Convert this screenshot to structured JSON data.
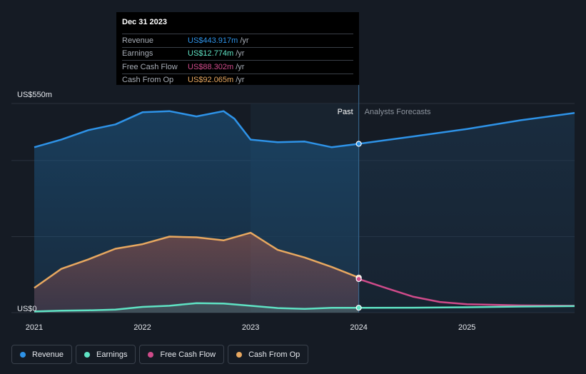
{
  "tooltip": {
    "date": "Dec 31 2023",
    "rows": [
      {
        "label": "Revenue",
        "value": "US$443.917m",
        "unit": "/yr",
        "color": "#2e93e8"
      },
      {
        "label": "Earnings",
        "value": "US$12.774m",
        "unit": "/yr",
        "color": "#5fe3c4"
      },
      {
        "label": "Free Cash Flow",
        "value": "US$88.302m",
        "unit": "/yr",
        "color": "#cf4b8a"
      },
      {
        "label": "Cash From Op",
        "value": "US$92.065m",
        "unit": "/yr",
        "color": "#e8a860"
      }
    ]
  },
  "legend": [
    {
      "label": "Revenue",
      "color": "#2e93e8"
    },
    {
      "label": "Earnings",
      "color": "#5fe3c4"
    },
    {
      "label": "Free Cash Flow",
      "color": "#cf4b8a"
    },
    {
      "label": "Cash From Op",
      "color": "#e8a860"
    }
  ],
  "chart_data": {
    "type": "area",
    "y_axis_labels": [
      "US$550m",
      "US$0"
    ],
    "ylim": [
      0,
      550
    ],
    "xlim": [
      2021.0,
      2025.995
    ],
    "x_ticks": [
      {
        "value": 2021.0,
        "label": "2021"
      },
      {
        "value": 2022.0,
        "label": "2022"
      },
      {
        "value": 2023.0,
        "label": "2023"
      },
      {
        "value": 2024.0,
        "label": "2024"
      },
      {
        "value": 2025.0,
        "label": "2025"
      }
    ],
    "past_label": "Past",
    "forecast_label": "Analysts Forecasts",
    "highlight_start": 2023.0,
    "divider_x": 2024.0,
    "series": [
      {
        "name": "Revenue",
        "color": "#2e93e8",
        "fill": true,
        "points": [
          [
            2021.0,
            435
          ],
          [
            2021.25,
            455
          ],
          [
            2021.5,
            480
          ],
          [
            2021.75,
            495
          ],
          [
            2022.0,
            527
          ],
          [
            2022.25,
            530
          ],
          [
            2022.5,
            516
          ],
          [
            2022.75,
            530
          ],
          [
            2022.85,
            510
          ],
          [
            2023.0,
            455
          ],
          [
            2023.25,
            448
          ],
          [
            2023.5,
            450
          ],
          [
            2023.75,
            435
          ],
          [
            2024.0,
            443.9
          ]
        ],
        "forecast": [
          [
            2024.0,
            443.9
          ],
          [
            2024.5,
            463
          ],
          [
            2025.0,
            483
          ],
          [
            2025.5,
            506
          ],
          [
            2025.995,
            525
          ]
        ],
        "marker": [
          2024.0,
          443.9
        ]
      },
      {
        "name": "Cash From Op",
        "color": "#e8a860",
        "fill": true,
        "points": [
          [
            2021.0,
            65
          ],
          [
            2021.25,
            115
          ],
          [
            2021.5,
            140
          ],
          [
            2021.75,
            168
          ],
          [
            2022.0,
            180
          ],
          [
            2022.25,
            200
          ],
          [
            2022.5,
            198
          ],
          [
            2022.75,
            190
          ],
          [
            2023.0,
            210
          ],
          [
            2023.25,
            165
          ],
          [
            2023.5,
            145
          ],
          [
            2023.75,
            120
          ],
          [
            2024.0,
            92.1
          ]
        ],
        "marker": [
          2024.0,
          92.1
        ]
      },
      {
        "name": "Free Cash Flow",
        "color": "#cf4b8a",
        "fill": false,
        "points": [],
        "forecast": [
          [
            2024.0,
            88.3
          ],
          [
            2024.25,
            65
          ],
          [
            2024.5,
            42
          ],
          [
            2024.75,
            28
          ],
          [
            2025.0,
            22
          ],
          [
            2025.5,
            19
          ],
          [
            2025.995,
            18
          ]
        ],
        "marker": [
          2024.0,
          88.3
        ]
      },
      {
        "name": "Earnings",
        "color": "#5fe3c4",
        "fill": true,
        "points": [
          [
            2021.0,
            3
          ],
          [
            2021.25,
            5
          ],
          [
            2021.5,
            6
          ],
          [
            2021.75,
            8
          ],
          [
            2022.0,
            15
          ],
          [
            2022.25,
            18
          ],
          [
            2022.5,
            25
          ],
          [
            2022.75,
            24
          ],
          [
            2023.0,
            18
          ],
          [
            2023.25,
            12
          ],
          [
            2023.5,
            10
          ],
          [
            2023.75,
            12.8
          ],
          [
            2024.0,
            12.8
          ]
        ],
        "forecast": [
          [
            2024.0,
            12.8
          ],
          [
            2024.5,
            13
          ],
          [
            2025.0,
            14
          ],
          [
            2025.5,
            16
          ],
          [
            2025.995,
            17
          ]
        ],
        "marker": [
          2024.0,
          12.8
        ]
      }
    ]
  }
}
